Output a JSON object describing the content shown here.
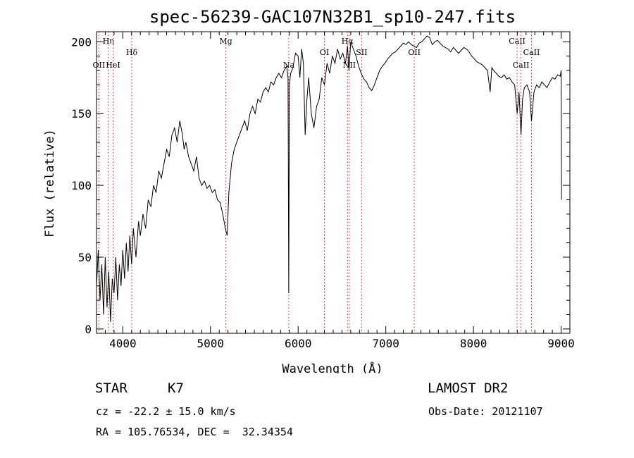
{
  "chart_data": {
    "type": "line",
    "title": "spec-56239-GAC107N32B1_sp10-247.fits",
    "xlabel": "Wavelength (Å)",
    "ylabel": "Flux (relative)",
    "xlim": [
      3700,
      9100
    ],
    "ylim": [
      -3,
      207
    ],
    "xticks": [
      4000,
      5000,
      6000,
      7000,
      8000,
      9000
    ],
    "yticks": [
      0,
      50,
      100,
      150,
      200
    ],
    "grid": false,
    "series": [
      {
        "x": [
          3700,
          3720,
          3740,
          3760,
          3780,
          3800,
          3820,
          3840,
          3860,
          3880,
          3900,
          3920,
          3940,
          3960,
          3980,
          4000,
          4020,
          4040,
          4060,
          4080,
          4100,
          4120,
          4150,
          4180,
          4200,
          4230,
          4260,
          4290,
          4320,
          4350,
          4380,
          4410,
          4440,
          4470,
          4500,
          4530,
          4560,
          4590,
          4620,
          4650,
          4680,
          4700,
          4720,
          4750,
          4780,
          4810,
          4840,
          4870,
          4900,
          4930,
          4960,
          4990,
          5020,
          5050,
          5080,
          5110,
          5140,
          5170,
          5190,
          5210,
          5240,
          5270,
          5300,
          5330,
          5360,
          5390,
          5420,
          5450,
          5480,
          5510,
          5540,
          5570,
          5600,
          5630,
          5660,
          5690,
          5720,
          5750,
          5780,
          5810,
          5840,
          5870,
          5885,
          5893,
          5900,
          5915,
          5940,
          5970,
          6000,
          6020,
          6040,
          6060,
          6080,
          6100,
          6120,
          6150,
          6180,
          6210,
          6240,
          6270,
          6300,
          6330,
          6360,
          6390,
          6420,
          6450,
          6480,
          6510,
          6540,
          6563,
          6580,
          6600,
          6630,
          6660,
          6690,
          6720,
          6750,
          6780,
          6810,
          6840,
          6870,
          6900,
          6930,
          6960,
          6990,
          7020,
          7050,
          7080,
          7110,
          7140,
          7170,
          7200,
          7230,
          7260,
          7290,
          7320,
          7350,
          7380,
          7410,
          7440,
          7470,
          7500,
          7530,
          7560,
          7590,
          7620,
          7650,
          7680,
          7710,
          7740,
          7770,
          7800,
          7830,
          7860,
          7890,
          7920,
          7950,
          7980,
          8010,
          8040,
          8070,
          8100,
          8130,
          8160,
          8190,
          8210,
          8230,
          8260,
          8290,
          8320,
          8350,
          8380,
          8410,
          8440,
          8470,
          8498,
          8520,
          8542,
          8560,
          8580,
          8610,
          8640,
          8662,
          8690,
          8720,
          8750,
          8780,
          8810,
          8840,
          8870,
          8900,
          8930,
          8960,
          8990,
          9000,
          9005
        ],
        "y": [
          30,
          55,
          20,
          45,
          10,
          50,
          15,
          40,
          5,
          35,
          25,
          50,
          20,
          45,
          30,
          55,
          35,
          60,
          40,
          65,
          45,
          70,
          50,
          75,
          65,
          80,
          70,
          90,
          85,
          100,
          95,
          110,
          105,
          115,
          125,
          120,
          135,
          140,
          130,
          145,
          135,
          125,
          130,
          120,
          115,
          110,
          120,
          105,
          100,
          103,
          98,
          100,
          95,
          97,
          90,
          88,
          80,
          70,
          65,
          95,
          115,
          125,
          130,
          135,
          140,
          145,
          138,
          150,
          155,
          150,
          160,
          158,
          165,
          168,
          165,
          172,
          170,
          175,
          178,
          175,
          180,
          183,
          175,
          25,
          170,
          178,
          182,
          192,
          190,
          175,
          195,
          185,
          135,
          160,
          175,
          150,
          140,
          155,
          160,
          175,
          170,
          185,
          178,
          190,
          185,
          195,
          188,
          192,
          185,
          197,
          180,
          200,
          195,
          190,
          183,
          178,
          174,
          172,
          168,
          166,
          170,
          175,
          180,
          183,
          185,
          188,
          190,
          192,
          193,
          195,
          197,
          199,
          198,
          200,
          198,
          197,
          196,
          199,
          200,
          202,
          204,
          203,
          198,
          200,
          201,
          199,
          197,
          196,
          195,
          193,
          196,
          194,
          192,
          194,
          196,
          195,
          193,
          190,
          188,
          186,
          185,
          184,
          182,
          180,
          165,
          182,
          180,
          178,
          176,
          175,
          177,
          174,
          175,
          172,
          170,
          150,
          165,
          135,
          160,
          168,
          170,
          165,
          145,
          165,
          170,
          168,
          172,
          170,
          168,
          172,
          175,
          174,
          177,
          176,
          180,
          90
        ]
      }
    ],
    "line_markers": [
      {
        "label": "OII",
        "x": 3727,
        "row": 3
      },
      {
        "label": "Hη",
        "x": 3835,
        "row": 1
      },
      {
        "label": "HeI",
        "x": 3889,
        "row": 3
      },
      {
        "label": "Hδ",
        "x": 4102,
        "row": 2
      },
      {
        "label": "Mg",
        "x": 5175,
        "row": 1
      },
      {
        "label": "Na",
        "x": 5893,
        "row": 3
      },
      {
        "label": "OI",
        "x": 6300,
        "row": 2
      },
      {
        "label": "Hα",
        "x": 6563,
        "row": 1
      },
      {
        "label": "NII",
        "x": 6584,
        "row": 3
      },
      {
        "label": "SII",
        "x": 6724,
        "row": 2
      },
      {
        "label": "OII",
        "x": 7325,
        "row": 2
      },
      {
        "label": "CaII",
        "x": 8498,
        "row": 1
      },
      {
        "label": "CaII",
        "x": 8542,
        "row": 3
      },
      {
        "label": "CaII",
        "x": 8662,
        "row": 2
      }
    ]
  },
  "info": {
    "object_class": "STAR",
    "subclass": "K7",
    "survey": "LAMOST DR2",
    "cz": "cz = -22.2 ± 15.0 km/s",
    "obs_date": "Obs-Date: 20121107",
    "coords": "RA = 105.76534, DEC =  32.34354"
  },
  "colors": {
    "line": "#000000",
    "marker": "#ff0000"
  }
}
